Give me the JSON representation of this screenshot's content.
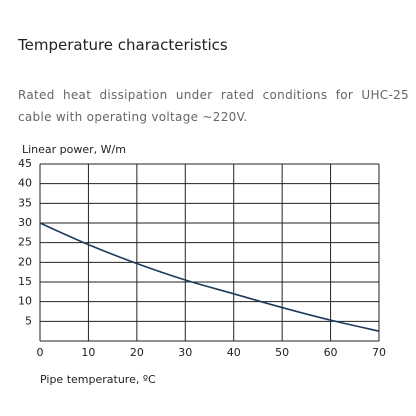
{
  "title": "Temperature characteristics",
  "description": "Rated heat dissipation under rated conditions for UHC-25 cable with operating voltage ~220V.",
  "chart_data": {
    "type": "line",
    "ylabel": "Linear power, W/m",
    "xlabel": "Pipe temperature, ºC",
    "x": [
      0,
      10,
      20,
      30,
      40,
      50,
      60,
      70
    ],
    "values": [
      30,
      24.5,
      19.7,
      15.5,
      12,
      8.5,
      5.3,
      2.5
    ],
    "color": "#1f3b5c",
    "xlim": [
      0,
      70
    ],
    "xticks": [
      0,
      10,
      20,
      30,
      40,
      50,
      60,
      70
    ],
    "ylim": [
      0,
      45
    ],
    "yticks": [
      5,
      10,
      15,
      20,
      25,
      30,
      35,
      40,
      45
    ],
    "grid": true
  }
}
